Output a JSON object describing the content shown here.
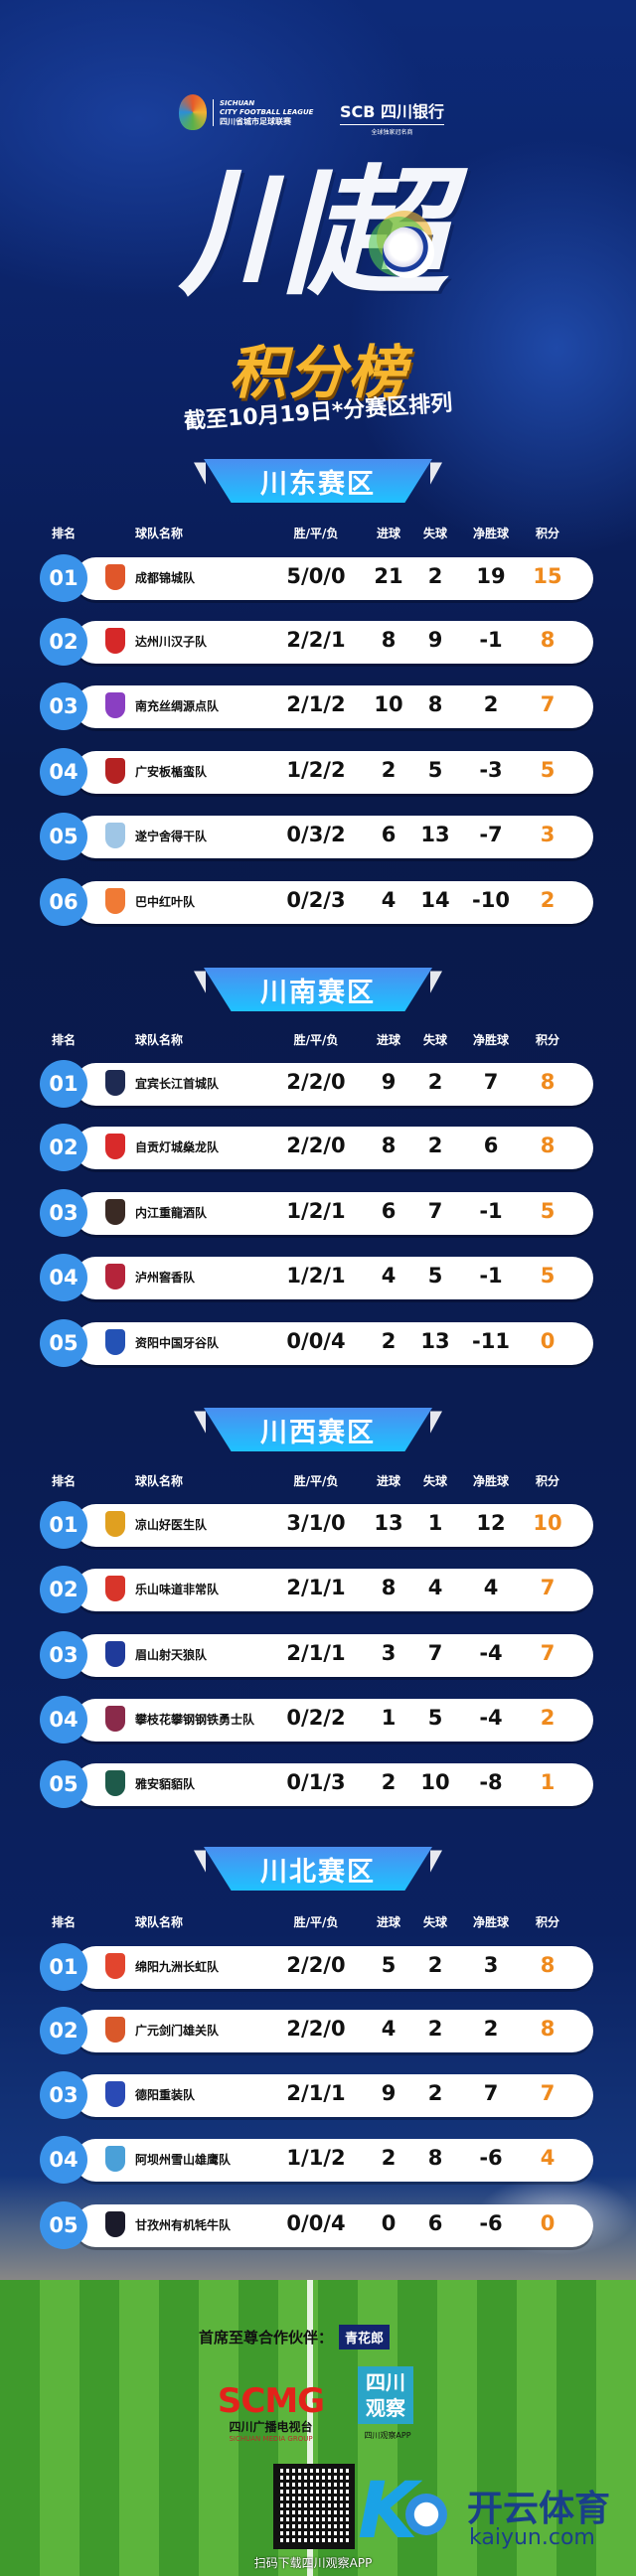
{
  "header": {
    "league_logo_text": [
      "SICHUAN",
      "CITY FOOTBALL LEAGUE",
      "四川省城市足球联赛"
    ],
    "sponsor_logo_text": "SCB 四川银行",
    "sponsor_tagline": "全球独家冠名商",
    "title_main": "川超",
    "title_sub": "积分榜",
    "title_date": "截至10月19日*分赛区排列"
  },
  "columns": [
    "排名",
    "球队名称",
    "胜/平/负",
    "进球",
    "失球",
    "净胜球",
    "积分"
  ],
  "colors": {
    "accent": "#3a93ea",
    "points": "#ef8a1d",
    "background": "#0a1d55",
    "title_gold": "#f7b62e"
  },
  "zones": [
    {
      "title": "川东赛区",
      "teams": [
        {
          "rank": "01",
          "name": "成都锦城队",
          "wdl": "5/0/0",
          "gf": 21,
          "ga": 2,
          "gd": 19,
          "pts": 15,
          "badge_color": "#e0562a"
        },
        {
          "rank": "02",
          "name": "达州川汉子队",
          "wdl": "2/2/1",
          "gf": 8,
          "ga": 9,
          "gd": -1,
          "pts": 8,
          "badge_color": "#d62828"
        },
        {
          "rank": "03",
          "name": "南充丝绸源点队",
          "wdl": "2/1/2",
          "gf": 10,
          "ga": 8,
          "gd": 2,
          "pts": 7,
          "badge_color": "#8a3fc2"
        },
        {
          "rank": "04",
          "name": "广安板楯蛮队",
          "wdl": "1/2/2",
          "gf": 2,
          "ga": 5,
          "gd": -3,
          "pts": 5,
          "badge_color": "#b52222"
        },
        {
          "rank": "05",
          "name": "遂宁舍得干队",
          "wdl": "0/3/2",
          "gf": 6,
          "ga": 13,
          "gd": -7,
          "pts": 3,
          "badge_color": "#9fc6e6"
        },
        {
          "rank": "06",
          "name": "巴中红叶队",
          "wdl": "0/2/3",
          "gf": 4,
          "ga": 14,
          "gd": -10,
          "pts": 2,
          "badge_color": "#f07a35"
        }
      ]
    },
    {
      "title": "川南赛区",
      "teams": [
        {
          "rank": "01",
          "name": "宜宾长江首城队",
          "wdl": "2/2/0",
          "gf": 9,
          "ga": 2,
          "gd": 7,
          "pts": 8,
          "badge_color": "#1e2a52"
        },
        {
          "rank": "02",
          "name": "自贡灯城燊龙队",
          "wdl": "2/2/0",
          "gf": 8,
          "ga": 2,
          "gd": 6,
          "pts": 8,
          "badge_color": "#d92a2a"
        },
        {
          "rank": "03",
          "name": "内江重龍酒队",
          "wdl": "1/2/1",
          "gf": 6,
          "ga": 7,
          "gd": -1,
          "pts": 5,
          "badge_color": "#3a2a24"
        },
        {
          "rank": "04",
          "name": "泸州窖香队",
          "wdl": "1/2/1",
          "gf": 4,
          "ga": 5,
          "gd": -1,
          "pts": 5,
          "badge_color": "#b5243a"
        },
        {
          "rank": "05",
          "name": "资阳中国牙谷队",
          "wdl": "0/0/4",
          "gf": 2,
          "ga": 13,
          "gd": -11,
          "pts": 0,
          "badge_color": "#2452b5"
        }
      ]
    },
    {
      "title": "川西赛区",
      "teams": [
        {
          "rank": "01",
          "name": "凉山好医生队",
          "wdl": "3/1/0",
          "gf": 13,
          "ga": 1,
          "gd": 12,
          "pts": 10,
          "badge_color": "#e0a020"
        },
        {
          "rank": "02",
          "name": "乐山味道非常队",
          "wdl": "2/1/1",
          "gf": 8,
          "ga": 4,
          "gd": 4,
          "pts": 7,
          "badge_color": "#d8352a"
        },
        {
          "rank": "03",
          "name": "眉山射天狼队",
          "wdl": "2/1/1",
          "gf": 3,
          "ga": 7,
          "gd": -4,
          "pts": 7,
          "badge_color": "#1f3a9a"
        },
        {
          "rank": "04",
          "name": "攀枝花攀钢钢铁勇士队",
          "wdl": "0/2/2",
          "gf": 1,
          "ga": 5,
          "gd": -4,
          "pts": 2,
          "badge_color": "#8a2a4a"
        },
        {
          "rank": "05",
          "name": "雅安貊貊队",
          "wdl": "0/1/3",
          "gf": 2,
          "ga": 10,
          "gd": -8,
          "pts": 1,
          "badge_color": "#1e5a4a"
        }
      ]
    },
    {
      "title": "川北赛区",
      "teams": [
        {
          "rank": "01",
          "name": "绵阳九洲长虹队",
          "wdl": "2/2/0",
          "gf": 5,
          "ga": 2,
          "gd": 3,
          "pts": 8,
          "badge_color": "#e2452e"
        },
        {
          "rank": "02",
          "name": "广元剑门雄关队",
          "wdl": "2/2/0",
          "gf": 4,
          "ga": 2,
          "gd": 2,
          "pts": 8,
          "badge_color": "#d9582a"
        },
        {
          "rank": "03",
          "name": "德阳重装队",
          "wdl": "2/1/1",
          "gf": 9,
          "ga": 2,
          "gd": 7,
          "pts": 7,
          "badge_color": "#2a4ab5"
        },
        {
          "rank": "04",
          "name": "阿坝州雪山雄鹰队",
          "wdl": "1/1/2",
          "gf": 2,
          "ga": 8,
          "gd": -6,
          "pts": 4,
          "badge_color": "#4aa0d8"
        },
        {
          "rank": "05",
          "name": "甘孜州有机牦牛队",
          "wdl": "0/0/4",
          "gf": 0,
          "ga": 6,
          "gd": -6,
          "pts": 0,
          "badge_color": "#1a1a2a"
        }
      ]
    }
  ],
  "footer": {
    "partner_label": "首席至尊合作伙伴：",
    "partner_name": "青花郎",
    "scmg_logo": "SCMG",
    "scmg_cn": "四川广播电视台",
    "scmg_en": "SICHUAN MEDIA GROUP",
    "scgc_logo": "四川观察",
    "scgc_caption": "四川观察APP",
    "qr_caption": "扫码下载四川观察APP",
    "watermark_cn": "开云体育",
    "watermark_en": "kaiyun.com"
  }
}
